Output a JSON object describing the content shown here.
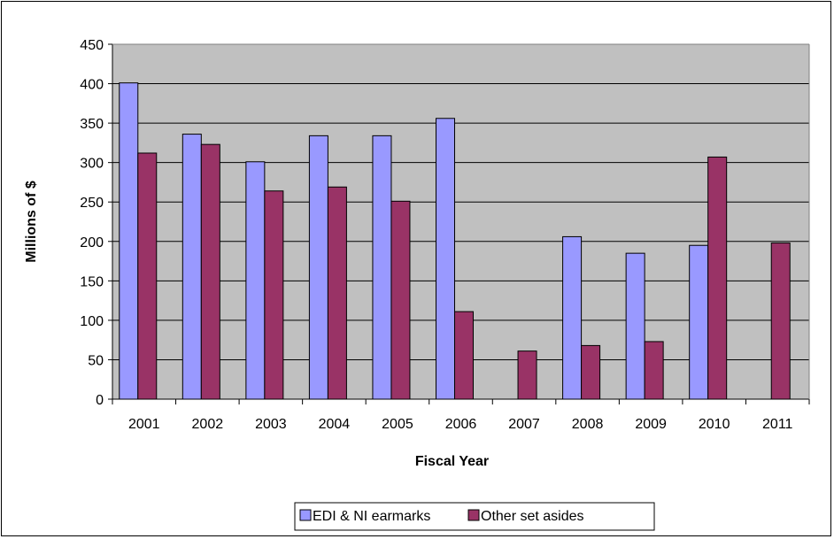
{
  "chart_data": {
    "type": "bar",
    "title": "",
    "xlabel": "Fiscal Year",
    "ylabel": "Millions of $",
    "ylim": [
      0,
      450
    ],
    "yticks": [
      0,
      50,
      100,
      150,
      200,
      250,
      300,
      350,
      400,
      450
    ],
    "grid": true,
    "legend_position": "bottom",
    "plot_background": "#C0C0C0",
    "categories": [
      "2001",
      "2002",
      "2003",
      "2004",
      "2005",
      "2006",
      "2007",
      "2008",
      "2009",
      "2010",
      "2011"
    ],
    "series": [
      {
        "name": "EDI & NI earmarks",
        "color": "#9999FF",
        "values": [
          401,
          336,
          301,
          334,
          334,
          356,
          0,
          206,
          185,
          195,
          0
        ]
      },
      {
        "name": "Other set asides",
        "color": "#993366",
        "values": [
          312,
          323,
          264,
          269,
          251,
          111,
          61,
          68,
          73,
          307,
          198
        ]
      }
    ]
  }
}
